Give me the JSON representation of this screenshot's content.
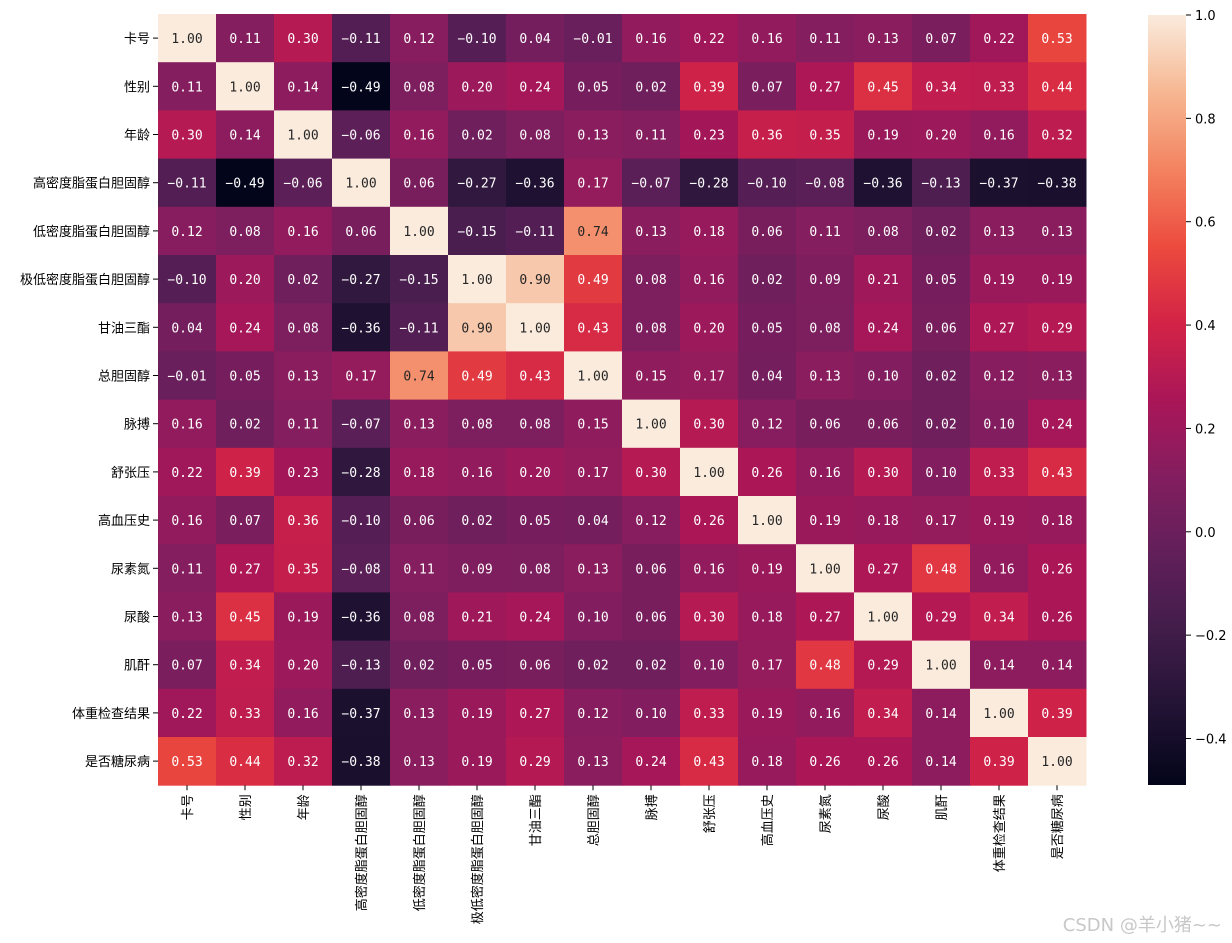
{
  "chart_data": {
    "type": "heatmap",
    "labels": [
      "卡号",
      "性别",
      "年龄",
      "高密度脂蛋白胆固醇",
      "低密度脂蛋白胆固醇",
      "极低密度脂蛋白胆固醇",
      "甘油三酯",
      "总胆固醇",
      "脉搏",
      "舒张压",
      "高血压史",
      "尿素氮",
      "尿酸",
      "肌酐",
      "体重检查结果",
      "是否糖尿病"
    ],
    "matrix": [
      [
        1.0,
        0.11,
        0.3,
        -0.11,
        0.12,
        -0.1,
        0.04,
        -0.01,
        0.16,
        0.22,
        0.16,
        0.11,
        0.13,
        0.07,
        0.22,
        0.53
      ],
      [
        0.11,
        1.0,
        0.14,
        -0.49,
        0.08,
        0.2,
        0.24,
        0.05,
        0.02,
        0.39,
        0.07,
        0.27,
        0.45,
        0.34,
        0.33,
        0.44
      ],
      [
        0.3,
        0.14,
        1.0,
        -0.06,
        0.16,
        0.02,
        0.08,
        0.13,
        0.11,
        0.23,
        0.36,
        0.35,
        0.19,
        0.2,
        0.16,
        0.32
      ],
      [
        -0.11,
        -0.49,
        -0.06,
        1.0,
        0.06,
        -0.27,
        -0.36,
        0.17,
        -0.07,
        -0.28,
        -0.1,
        -0.08,
        -0.36,
        -0.13,
        -0.37,
        -0.38
      ],
      [
        0.12,
        0.08,
        0.16,
        0.06,
        1.0,
        -0.15,
        -0.11,
        0.74,
        0.13,
        0.18,
        0.06,
        0.11,
        0.08,
        0.02,
        0.13,
        0.13
      ],
      [
        -0.1,
        0.2,
        0.02,
        -0.27,
        -0.15,
        1.0,
        0.9,
        0.49,
        0.08,
        0.16,
        0.02,
        0.09,
        0.21,
        0.05,
        0.19,
        0.19
      ],
      [
        0.04,
        0.24,
        0.08,
        -0.36,
        -0.11,
        0.9,
        1.0,
        0.43,
        0.08,
        0.2,
        0.05,
        0.08,
        0.24,
        0.06,
        0.27,
        0.29
      ],
      [
        -0.01,
        0.05,
        0.13,
        0.17,
        0.74,
        0.49,
        0.43,
        1.0,
        0.15,
        0.17,
        0.04,
        0.13,
        0.1,
        0.02,
        0.12,
        0.13
      ],
      [
        0.16,
        0.02,
        0.11,
        -0.07,
        0.13,
        0.08,
        0.08,
        0.15,
        1.0,
        0.3,
        0.12,
        0.06,
        0.06,
        0.02,
        0.1,
        0.24
      ],
      [
        0.22,
        0.39,
        0.23,
        -0.28,
        0.18,
        0.16,
        0.2,
        0.17,
        0.3,
        1.0,
        0.26,
        0.16,
        0.3,
        0.1,
        0.33,
        0.43
      ],
      [
        0.16,
        0.07,
        0.36,
        -0.1,
        0.06,
        0.02,
        0.05,
        0.04,
        0.12,
        0.26,
        1.0,
        0.19,
        0.18,
        0.17,
        0.19,
        0.18
      ],
      [
        0.11,
        0.27,
        0.35,
        -0.08,
        0.11,
        0.09,
        0.08,
        0.13,
        0.06,
        0.16,
        0.19,
        1.0,
        0.27,
        0.48,
        0.16,
        0.26
      ],
      [
        0.13,
        0.45,
        0.19,
        -0.36,
        0.08,
        0.21,
        0.24,
        0.1,
        0.06,
        0.3,
        0.18,
        0.27,
        1.0,
        0.29,
        0.34,
        0.26
      ],
      [
        0.07,
        0.34,
        0.2,
        -0.13,
        0.02,
        0.05,
        0.06,
        0.02,
        0.02,
        0.1,
        0.17,
        0.48,
        0.29,
        1.0,
        0.14,
        0.14
      ],
      [
        0.22,
        0.33,
        0.16,
        -0.37,
        0.13,
        0.19,
        0.27,
        0.12,
        0.1,
        0.33,
        0.19,
        0.16,
        0.34,
        0.14,
        1.0,
        0.39
      ],
      [
        0.53,
        0.44,
        0.32,
        -0.38,
        0.13,
        0.19,
        0.29,
        0.13,
        0.24,
        0.43,
        0.18,
        0.26,
        0.26,
        0.14,
        0.39,
        1.0
      ]
    ],
    "colorbar": {
      "vmin": -0.49,
      "vmax": 1.0,
      "ticks": [
        -0.4,
        -0.2,
        0.0,
        0.2,
        0.4,
        0.6,
        0.8,
        1.0
      ],
      "tick_labels": [
        "−0.4",
        "−0.2",
        "0.0",
        "0.2",
        "0.4",
        "0.6",
        "0.8",
        "1.0"
      ],
      "colormap": "rocket"
    },
    "value_format": "2 decimals, minus sign shown as −"
  },
  "watermark": "CSDN @羊小猪~~"
}
